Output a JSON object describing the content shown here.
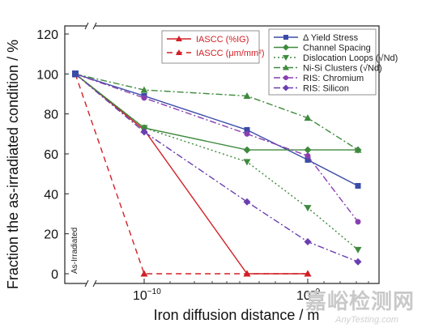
{
  "chart_data": {
    "type": "line",
    "xlabel": "Iron diffusion distance / m",
    "ylabel": "Fraction the as-irradiated condition / %",
    "ylim": [
      0,
      120
    ],
    "yticks": [
      0,
      20,
      40,
      60,
      80,
      100,
      120
    ],
    "x_scale": "log",
    "xticks": [
      {
        "value": 1e-10,
        "base": "10",
        "exp": "−10"
      },
      {
        "value": 1e-09,
        "base": "10",
        "exp": "−9"
      }
    ],
    "x_categories": [
      "As-irradiated",
      "1e-10",
      "4e-10",
      "9e-10",
      "1.8e-9"
    ],
    "annotation": "As-Irradiated",
    "grid": false,
    "legend_left": [
      {
        "name": "IASCC (%IG)",
        "color": "#d02026",
        "dash": "solid",
        "marker": "triangle"
      },
      {
        "name": "IASCC (μm/mm²)",
        "color": "#d02026",
        "dash": "dashed",
        "marker": "triangle"
      }
    ],
    "legend_right": [
      {
        "name": "Δ Yield Stress",
        "color": "#3b4ba8",
        "dash": "solid",
        "marker": "square"
      },
      {
        "name": "Channel Spacing",
        "color": "#3e8a3e",
        "dash": "solid",
        "marker": "diamond"
      },
      {
        "name": "Dislocation Loops (√Nd)",
        "color": "#3e8a3e",
        "dash": "dotted",
        "marker": "triangle-down"
      },
      {
        "name": "Ni-Si Clusters (√Nd)",
        "color": "#3e8a3e",
        "dash": "dashdot",
        "marker": "triangle"
      },
      {
        "name": "RIS: Chromium",
        "color": "#8a3fb0",
        "dash": "dashdot",
        "marker": "circle"
      },
      {
        "name": "RIS: Silicon",
        "color": "#6a3fb0",
        "dash": "dashdot",
        "marker": "diamond"
      }
    ],
    "series": [
      {
        "name": "IASCC (%IG)",
        "x_index": [
          0,
          1,
          2,
          3
        ],
        "values": [
          100,
          72,
          0,
          0
        ],
        "color": "#d02026",
        "dash": "solid",
        "marker": "triangle"
      },
      {
        "name": "IASCC (μm/mm²)",
        "x_index": [
          0,
          1,
          2,
          3
        ],
        "values": [
          100,
          0,
          0,
          0
        ],
        "color": "#d02026",
        "dash": "dashed",
        "marker": "triangle"
      },
      {
        "name": "Δ Yield Stress",
        "x_index": [
          0,
          1,
          2,
          3,
          4
        ],
        "values": [
          100,
          89,
          72,
          57,
          44
        ],
        "color": "#3b4ba8",
        "dash": "solid",
        "marker": "square"
      },
      {
        "name": "Channel Spacing",
        "x_index": [
          0,
          1,
          2,
          3,
          4
        ],
        "values": [
          100,
          73,
          62,
          62,
          62
        ],
        "color": "#3e8a3e",
        "dash": "solid",
        "marker": "diamond"
      },
      {
        "name": "Dislocation Loops (√Nd)",
        "x_index": [
          0,
          1,
          2,
          3,
          4
        ],
        "values": [
          100,
          73,
          56,
          33,
          12
        ],
        "color": "#3e8a3e",
        "dash": "dotted",
        "marker": "triangle-down"
      },
      {
        "name": "Ni-Si Clusters (√Nd)",
        "x_index": [
          0,
          1,
          2,
          3,
          4
        ],
        "values": [
          100,
          92,
          89,
          78,
          62
        ],
        "color": "#3e8a3e",
        "dash": "dashdot",
        "marker": "triangle"
      },
      {
        "name": "RIS: Chromium",
        "x_index": [
          0,
          1,
          2,
          3,
          4
        ],
        "values": [
          100,
          88,
          70,
          59,
          26
        ],
        "color": "#8a3fb0",
        "dash": "dashdot",
        "marker": "circle"
      },
      {
        "name": "RIS: Silicon",
        "x_index": [
          0,
          1,
          2,
          3,
          4
        ],
        "values": [
          100,
          71,
          36,
          16,
          6
        ],
        "color": "#6a3fb0",
        "dash": "dashdot",
        "marker": "diamond"
      }
    ]
  },
  "watermark": {
    "main": "嘉峪检测网",
    "sub": "AnyTesting.com"
  }
}
